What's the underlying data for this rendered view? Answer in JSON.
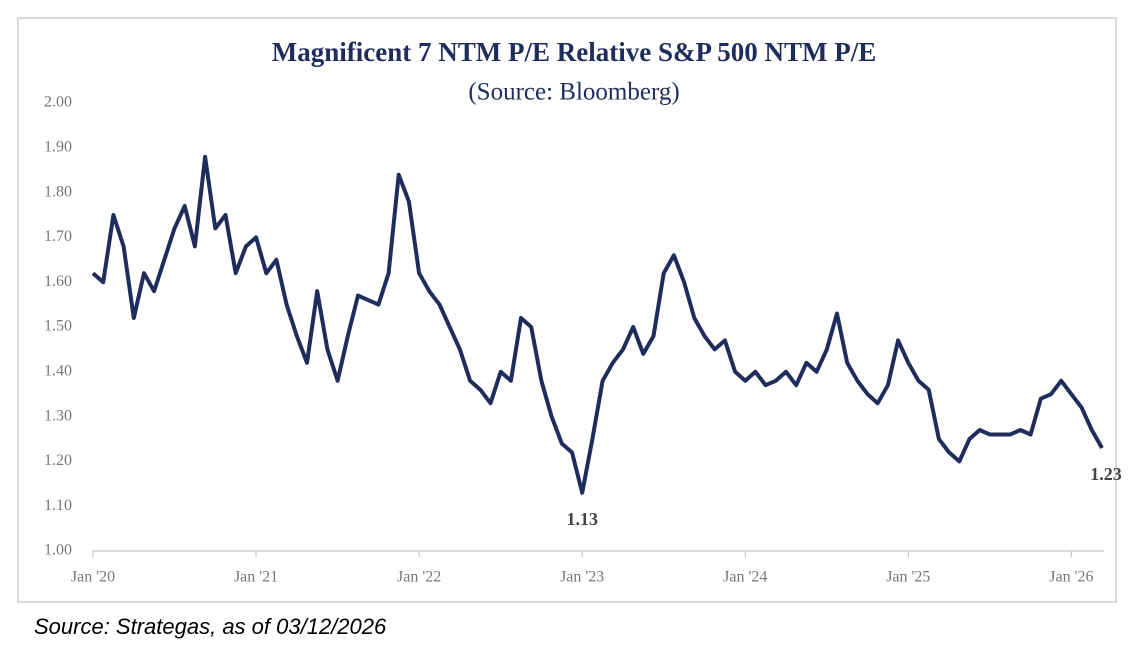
{
  "chart_data": {
    "type": "line",
    "title": "Magnificent 7 NTM P/E Relative S&P 500 NTM P/E",
    "subtitle": "(Source: Bloomberg)",
    "source": "Source: Strategas, as of 03/12/2026",
    "color": "#1f2d5c",
    "x": [
      2020,
      2020.0625,
      2020.125,
      2020.1875,
      2020.25,
      2020.3125,
      2020.375,
      2020.4375,
      2020.5,
      2020.5625,
      2020.625,
      2020.6875,
      2020.75,
      2020.8125,
      2020.875,
      2020.9375,
      2021,
      2021.0625,
      2021.125,
      2021.1875,
      2021.25,
      2021.3125,
      2021.375,
      2021.4375,
      2021.5,
      2021.5625,
      2021.625,
      2021.6875,
      2021.75,
      2021.8125,
      2021.875,
      2021.9375,
      2022,
      2022.0625,
      2022.125,
      2022.1875,
      2022.25,
      2022.3125,
      2022.375,
      2022.4375,
      2022.5,
      2022.5625,
      2022.625,
      2022.6875,
      2022.75,
      2022.8125,
      2022.875,
      2022.9375,
      2023,
      2023.0625,
      2023.125,
      2023.1875,
      2023.25,
      2023.3125,
      2023.375,
      2023.4375,
      2023.5,
      2023.5625,
      2023.625,
      2023.6875,
      2023.75,
      2023.8125,
      2023.875,
      2023.9375,
      2024,
      2024.0625,
      2024.125,
      2024.1875,
      2024.25,
      2024.3125,
      2024.375,
      2024.4375,
      2024.5,
      2024.5625,
      2024.625,
      2024.6875,
      2024.75,
      2024.8125,
      2024.875,
      2024.9375,
      2025,
      2025.0625,
      2025.125,
      2025.1875,
      2025.25,
      2025.3125,
      2025.375,
      2025.4375,
      2025.5,
      2025.5625,
      2025.625,
      2025.6875,
      2025.75,
      2025.8125,
      2025.875,
      2025.9375,
      2026,
      2026.0625,
      2026.125,
      2026.1875
    ],
    "values": [
      1.62,
      1.6,
      1.75,
      1.68,
      1.52,
      1.62,
      1.58,
      1.65,
      1.72,
      1.77,
      1.68,
      1.88,
      1.72,
      1.75,
      1.62,
      1.68,
      1.7,
      1.62,
      1.65,
      1.55,
      1.48,
      1.42,
      1.58,
      1.45,
      1.38,
      1.48,
      1.57,
      1.56,
      1.55,
      1.62,
      1.84,
      1.78,
      1.62,
      1.58,
      1.55,
      1.5,
      1.45,
      1.38,
      1.36,
      1.33,
      1.4,
      1.38,
      1.52,
      1.5,
      1.38,
      1.3,
      1.24,
      1.22,
      1.13,
      1.25,
      1.38,
      1.42,
      1.45,
      1.5,
      1.44,
      1.48,
      1.62,
      1.66,
      1.6,
      1.52,
      1.48,
      1.45,
      1.47,
      1.4,
      1.38,
      1.4,
      1.37,
      1.38,
      1.4,
      1.37,
      1.42,
      1.4,
      1.45,
      1.53,
      1.42,
      1.38,
      1.35,
      1.33,
      1.37,
      1.47,
      1.42,
      1.38,
      1.36,
      1.25,
      1.22,
      1.2,
      1.25,
      1.27,
      1.26,
      1.26,
      1.26,
      1.27,
      1.26,
      1.34,
      1.35,
      1.38,
      1.35,
      1.32,
      1.27,
      1.23
    ],
    "annotations": [
      "1.13",
      "1.23"
    ],
    "xlim": [
      2020,
      2026.2
    ],
    "xticks": [
      {
        "value": 2020,
        "label": "Jan '20"
      },
      {
        "value": 2021,
        "label": "Jan '21"
      },
      {
        "value": 2022,
        "label": "Jan '22"
      },
      {
        "value": 2023,
        "label": "Jan '23"
      },
      {
        "value": 2024,
        "label": "Jan '24"
      },
      {
        "value": 2025,
        "label": "Jan '25"
      },
      {
        "value": 2026,
        "label": "Jan '26"
      }
    ],
    "ylim": [
      1,
      2
    ],
    "yticks": [
      {
        "value": 1,
        "label": "1.00"
      },
      {
        "value": 1.1,
        "label": "1.10"
      },
      {
        "value": 1.2,
        "label": "1.20"
      },
      {
        "value": 1.3,
        "label": "1.30"
      },
      {
        "value": 1.4,
        "label": "1.40"
      },
      {
        "value": 1.5,
        "label": "1.50"
      },
      {
        "value": 1.6,
        "label": "1.60"
      },
      {
        "value": 1.7,
        "label": "1.70"
      },
      {
        "value": 1.8,
        "label": "1.80"
      },
      {
        "value": 1.9,
        "label": "1.90"
      },
      {
        "value": 2,
        "label": "2.00"
      }
    ],
    "grid": false
  }
}
